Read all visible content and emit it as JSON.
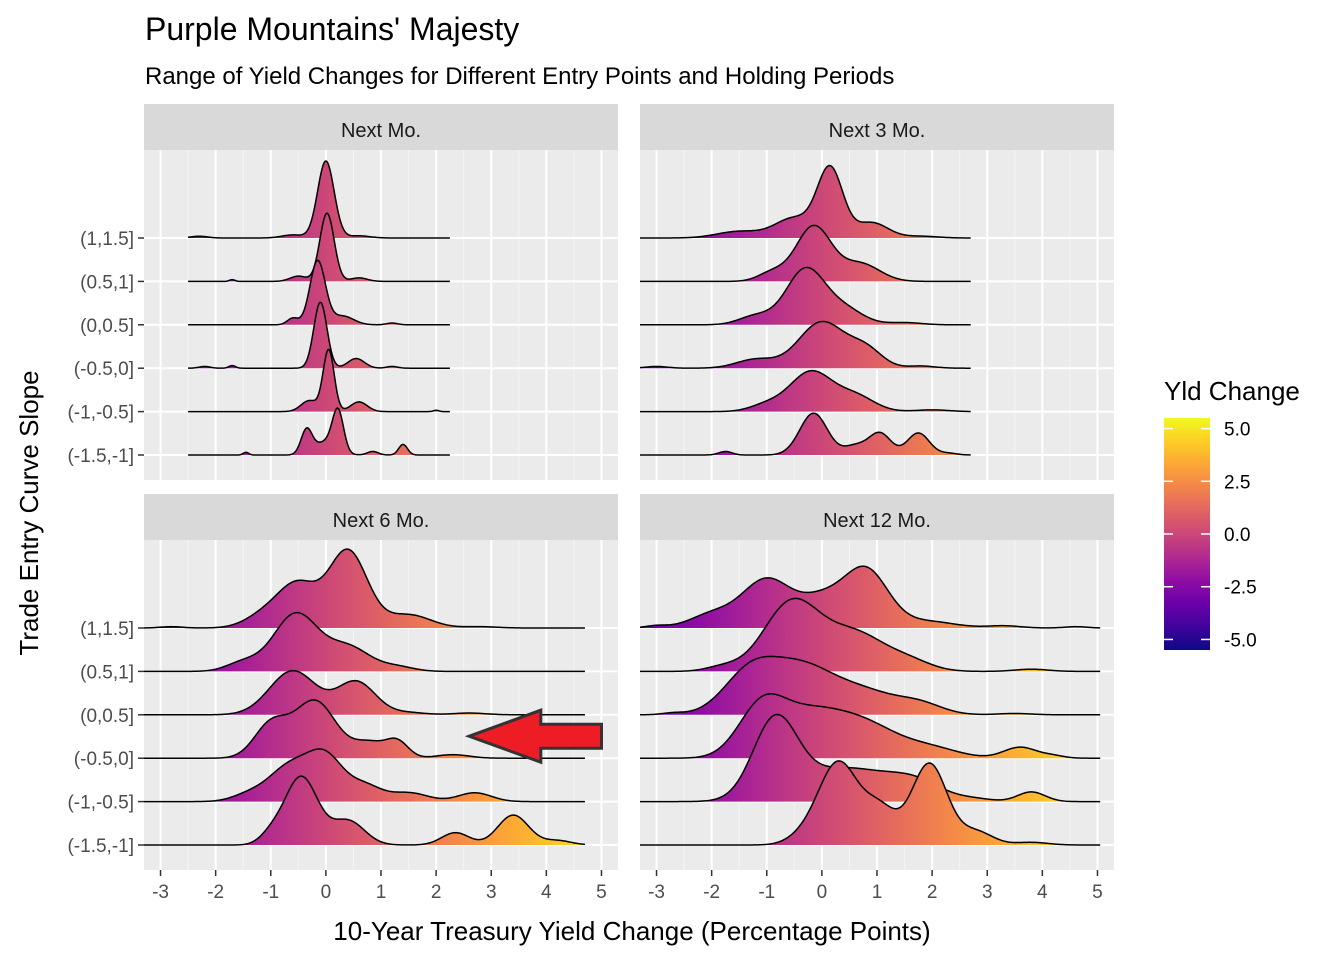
{
  "title": "Purple Mountains' Majesty",
  "subtitle": "Range of Yield Changes for Different Entry Points and Holding Periods",
  "chart_data": {
    "type": "ridgeline",
    "xlabel": "10-Year Treasury Yield Change (Percentage Points)",
    "ylabel": "Trade Entry Curve Slope",
    "x_ticks": [
      -3,
      -2,
      -1,
      0,
      1,
      2,
      3,
      4,
      5
    ],
    "xlim": [
      -3.3,
      5.3
    ],
    "categories": [
      "(-1.5,-1]",
      "(-1,-0.5]",
      "(-0.5,0]",
      "(0,0.5]",
      "(0.5,1]",
      "(1,1.5]"
    ],
    "legend": {
      "title": "Yld Change",
      "ticks": [
        5.0,
        2.5,
        0.0,
        -2.5,
        -5.0
      ],
      "tick_labels": [
        "5.0",
        "2.5",
        "0.0",
        "-2.5",
        "-5.0"
      ],
      "range": [
        -5.5,
        5.5
      ],
      "colormap": "plasma",
      "position": "right"
    },
    "facets": [
      {
        "label": "Next Mo.",
        "xrange": [
          -2.5,
          2.25
        ],
        "ridges": [
          {
            "category": "(-1.5,-1]",
            "peaks": [
              [
                -1.45,
                0.06,
                0.05
              ],
              [
                -0.35,
                0.55,
                0.1
              ],
              [
                0.22,
                0.9,
                0.1
              ],
              [
                0.0,
                0.3,
                0.2
              ],
              [
                0.85,
                0.08,
                0.1
              ],
              [
                1.4,
                0.24,
                0.08
              ]
            ]
          },
          {
            "category": "(-1,-0.5]",
            "peaks": [
              [
                0.05,
                1.4,
                0.1
              ],
              [
                -0.3,
                0.25,
                0.15
              ],
              [
                0.6,
                0.22,
                0.15
              ],
              [
                2.0,
                0.03,
                0.05
              ]
            ]
          },
          {
            "category": "(-0.5,0]",
            "peaks": [
              [
                -0.1,
                1.5,
                0.12
              ],
              [
                0.55,
                0.22,
                0.15
              ],
              [
                -2.2,
                0.04,
                0.1
              ],
              [
                -1.7,
                0.06,
                0.06
              ],
              [
                1.2,
                0.04,
                0.1
              ]
            ]
          },
          {
            "category": "(0,0.5]",
            "peaks": [
              [
                -0.15,
                1.45,
                0.14
              ],
              [
                -0.6,
                0.15,
                0.1
              ],
              [
                0.3,
                0.2,
                0.2
              ],
              [
                1.2,
                0.04,
                0.1
              ]
            ]
          },
          {
            "category": "(0.5,1]",
            "peaks": [
              [
                0.02,
                1.55,
                0.13
              ],
              [
                -0.5,
                0.12,
                0.15
              ],
              [
                -1.7,
                0.04,
                0.05
              ],
              [
                0.6,
                0.08,
                0.15
              ]
            ]
          },
          {
            "category": "(1,1.5]",
            "peaks": [
              [
                0.0,
                1.75,
                0.15
              ],
              [
                -0.6,
                0.07,
                0.2
              ],
              [
                -2.3,
                0.04,
                0.15
              ],
              [
                0.6,
                0.05,
                0.2
              ]
            ]
          }
        ]
      },
      {
        "label": "Next 3 Mo.",
        "xrange": [
          -3.4,
          2.7
        ],
        "ridges": [
          {
            "category": "(-1.5,-1]",
            "peaks": [
              [
                -0.15,
                0.95,
                0.25
              ],
              [
                1.05,
                0.5,
                0.2
              ],
              [
                1.75,
                0.5,
                0.2
              ],
              [
                0.6,
                0.2,
                0.2
              ],
              [
                -1.75,
                0.08,
                0.12
              ],
              [
                2.3,
                0.04,
                0.15
              ]
            ]
          },
          {
            "category": "(-1,-0.5]",
            "peaks": [
              [
                -0.2,
                0.9,
                0.38
              ],
              [
                0.6,
                0.35,
                0.35
              ],
              [
                -1.0,
                0.15,
                0.3
              ],
              [
                2.0,
                0.04,
                0.3
              ]
            ]
          },
          {
            "category": "(-0.5,0]",
            "peaks": [
              [
                0.0,
                1.05,
                0.42
              ],
              [
                0.8,
                0.4,
                0.3
              ],
              [
                -1.2,
                0.2,
                0.35
              ],
              [
                -3.0,
                0.04,
                0.2
              ],
              [
                1.8,
                0.05,
                0.25
              ]
            ]
          },
          {
            "category": "(0,0.5]",
            "peaks": [
              [
                -0.3,
                1.25,
                0.35
              ],
              [
                0.4,
                0.35,
                0.35
              ],
              [
                -1.2,
                0.2,
                0.3
              ],
              [
                1.5,
                0.05,
                0.3
              ]
            ]
          },
          {
            "category": "(0.5,1]",
            "peaks": [
              [
                -0.15,
                1.25,
                0.32
              ],
              [
                0.7,
                0.4,
                0.35
              ],
              [
                -0.9,
                0.2,
                0.25
              ]
            ]
          },
          {
            "category": "(1,1.5]",
            "peaks": [
              [
                0.15,
                1.55,
                0.23
              ],
              [
                -0.5,
                0.45,
                0.35
              ],
              [
                -1.5,
                0.15,
                0.4
              ],
              [
                0.9,
                0.35,
                0.3
              ],
              [
                1.8,
                0.04,
                0.3
              ]
            ]
          }
        ]
      },
      {
        "label": "Next 6 Mo.",
        "xrange": [
          -3.4,
          4.7
        ],
        "ridges": [
          {
            "category": "(-1.5,-1]",
            "peaks": [
              [
                -0.45,
                1.55,
                0.3
              ],
              [
                0.4,
                0.55,
                0.3
              ],
              [
                -1.0,
                0.2,
                0.2
              ],
              [
                2.35,
                0.28,
                0.25
              ],
              [
                3.4,
                0.68,
                0.28
              ],
              [
                4.2,
                0.1,
                0.25
              ]
            ]
          },
          {
            "category": "(-1,-0.5]",
            "peaks": [
              [
                -0.65,
                0.8,
                0.38
              ],
              [
                0.0,
                0.95,
                0.32
              ],
              [
                0.7,
                0.35,
                0.3
              ],
              [
                -1.4,
                0.15,
                0.3
              ],
              [
                1.5,
                0.2,
                0.35
              ],
              [
                2.7,
                0.2,
                0.3
              ]
            ]
          },
          {
            "category": "(-0.5,0]",
            "peaks": [
              [
                -0.2,
                1.3,
                0.38
              ],
              [
                -1.0,
                0.75,
                0.3
              ],
              [
                0.8,
                0.35,
                0.3
              ],
              [
                1.3,
                0.35,
                0.2
              ],
              [
                2.3,
                0.08,
                0.3
              ]
            ]
          },
          {
            "category": "(0,0.5]",
            "peaks": [
              [
                -0.6,
                1.0,
                0.42
              ],
              [
                0.55,
                0.75,
                0.35
              ],
              [
                1.5,
                0.05,
                0.3
              ],
              [
                2.6,
                0.04,
                0.3
              ]
            ]
          },
          {
            "category": "(0.5,1]",
            "peaks": [
              [
                -0.55,
                1.3,
                0.4
              ],
              [
                0.4,
                0.55,
                0.4
              ],
              [
                -1.5,
                0.2,
                0.3
              ],
              [
                1.3,
                0.1,
                0.3
              ]
            ]
          },
          {
            "category": "(1,1.5]",
            "peaks": [
              [
                -0.5,
                0.95,
                0.35
              ],
              [
                0.4,
                1.75,
                0.35
              ],
              [
                -1.1,
                0.3,
                0.35
              ],
              [
                1.5,
                0.3,
                0.4
              ],
              [
                -2.8,
                0.03,
                0.2
              ],
              [
                2.8,
                0.03,
                0.3
              ]
            ]
          }
        ]
      },
      {
        "label": "Next 12 Mo.",
        "xrange": [
          -3.4,
          5.05
        ],
        "ridges": [
          {
            "category": "(-1.5,-1]",
            "peaks": [
              [
                0.3,
                1.85,
                0.35
              ],
              [
                1.95,
                1.85,
                0.32
              ],
              [
                1.05,
                0.8,
                0.3
              ],
              [
                -0.3,
                0.2,
                0.3
              ],
              [
                2.8,
                0.3,
                0.3
              ],
              [
                3.8,
                0.06,
                0.3
              ]
            ]
          },
          {
            "category": "(-1,-0.5]",
            "peaks": [
              [
                -0.85,
                1.75,
                0.4
              ],
              [
                0.4,
                0.75,
                0.8
              ],
              [
                1.7,
                0.38,
                0.5
              ],
              [
                3.8,
                0.22,
                0.25
              ],
              [
                2.8,
                0.05,
                0.3
              ]
            ]
          },
          {
            "category": "(-0.5,0]",
            "peaks": [
              [
                -1.1,
                1.1,
                0.42
              ],
              [
                -0.3,
                0.8,
                0.55
              ],
              [
                0.7,
                0.8,
                0.65
              ],
              [
                2.0,
                0.2,
                0.5
              ],
              [
                3.6,
                0.25,
                0.3
              ],
              [
                4.2,
                0.05,
                0.2
              ]
            ]
          },
          {
            "category": "(0,0.5]",
            "peaks": [
              [
                -1.3,
                0.95,
                0.48
              ],
              [
                -0.4,
                0.95,
                0.55
              ],
              [
                0.7,
                0.55,
                0.65
              ],
              [
                1.8,
                0.2,
                0.4
              ],
              [
                3.5,
                0.03,
                0.3
              ],
              [
                -2.7,
                0.04,
                0.2
              ]
            ]
          },
          {
            "category": "(0.5,1]",
            "peaks": [
              [
                -0.55,
                1.55,
                0.5
              ],
              [
                0.6,
                0.85,
                0.55
              ],
              [
                1.6,
                0.2,
                0.4
              ],
              [
                -1.8,
                0.1,
                0.3
              ],
              [
                3.8,
                0.05,
                0.3
              ]
            ]
          },
          {
            "category": "(1,1.5]",
            "peaks": [
              [
                -1.0,
                1.1,
                0.45
              ],
              [
                0.8,
                1.3,
                0.4
              ],
              [
                0.0,
                0.6,
                0.4
              ],
              [
                -2.0,
                0.3,
                0.4
              ],
              [
                1.9,
                0.15,
                0.5
              ],
              [
                3.3,
                0.05,
                0.3
              ],
              [
                4.6,
                0.03,
                0.2
              ],
              [
                -3.0,
                0.05,
                0.2
              ]
            ]
          }
        ]
      }
    ],
    "annotation": {
      "type": "arrow",
      "facet": "Next 6 Mo.",
      "points_left": true,
      "fill": "#ee1c24",
      "stroke": "#333333"
    }
  }
}
